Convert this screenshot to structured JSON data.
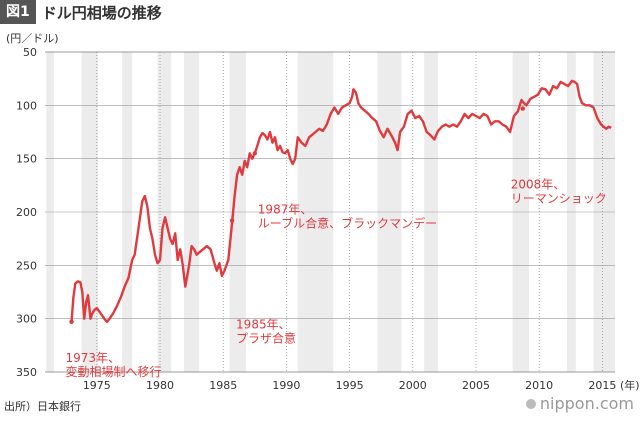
{
  "header": {
    "badge": "図1",
    "title": "ドル円相場の推移"
  },
  "unit_label": "(円／ドル)",
  "source": "出所）日本銀行",
  "brand": "nippon.com",
  "colors": {
    "line": "#e03a3e",
    "band": "#ececec",
    "grid": "#999999",
    "text": "#333333",
    "annotation": "#e03a3e"
  },
  "chart_data": {
    "type": "line",
    "title": "ドル円相場の推移",
    "ylabel": "(円／ドル)",
    "xlabel": "(年)",
    "y_inverted": true,
    "ylim": [
      50,
      350
    ],
    "xlim": [
      1970.9,
      2016.0
    ],
    "yticks": [
      50,
      100,
      150,
      200,
      250,
      300,
      350
    ],
    "xticks": [
      1975,
      1980,
      1985,
      1990,
      1995,
      2000,
      2005,
      2010,
      2015
    ],
    "xtick_labels": [
      "1975",
      "1980",
      "1985",
      "1990",
      "1995",
      "2000",
      "2005",
      "2010",
      "2015"
    ],
    "x_unit_label": "(年)",
    "recession_bands": [
      [
        1971.0,
        1971.6
      ],
      [
        1973.8,
        1975.1
      ],
      [
        1977.0,
        1977.8
      ],
      [
        1979.8,
        1980.9
      ],
      [
        1981.9,
        1983.1
      ],
      [
        1985.5,
        1986.8
      ],
      [
        1990.9,
        1993.7
      ],
      [
        1997.2,
        1999.1
      ],
      [
        2000.9,
        2002.0
      ],
      [
        2007.9,
        2009.2
      ],
      [
        2012.2,
        2012.9
      ],
      [
        2014.3,
        2016.0
      ]
    ],
    "series": [
      {
        "x": [
          1973.0,
          1973.15,
          1973.3,
          1973.5,
          1973.7,
          1973.85,
          1974.0,
          1974.15,
          1974.3,
          1974.5,
          1974.65,
          1974.8,
          1975.0,
          1975.3,
          1975.6,
          1975.8,
          1976.0,
          1976.3,
          1976.6,
          1976.9,
          1977.2,
          1977.5,
          1977.8,
          1978.0,
          1978.3,
          1978.6,
          1978.8,
          1979.0,
          1979.2,
          1979.4,
          1979.6,
          1979.8,
          1980.0,
          1980.2,
          1980.4,
          1980.6,
          1980.8,
          1981.0,
          1981.2,
          1981.4,
          1981.6,
          1981.8,
          1982.0,
          1982.3,
          1982.5,
          1982.7,
          1982.9,
          1983.1,
          1983.4,
          1983.7,
          1984.0,
          1984.3,
          1984.5,
          1984.7,
          1984.9,
          1985.1,
          1985.4,
          1985.7,
          1985.9,
          1986.1,
          1986.3,
          1986.5,
          1986.7,
          1986.9,
          1987.1,
          1987.3,
          1987.5,
          1987.7,
          1987.9,
          1988.1,
          1988.3,
          1988.5,
          1988.7,
          1988.9,
          1989.1,
          1989.3,
          1989.5,
          1989.7,
          1989.9,
          1990.1,
          1990.3,
          1990.5,
          1990.7,
          1990.9,
          1991.2,
          1991.5,
          1991.8,
          1992.0,
          1992.3,
          1992.6,
          1992.9,
          1993.2,
          1993.5,
          1993.8,
          1994.1,
          1994.4,
          1994.7,
          1995.0,
          1995.2,
          1995.3,
          1995.5,
          1995.7,
          1995.9,
          1996.2,
          1996.5,
          1996.8,
          1997.1,
          1997.4,
          1997.7,
          1998.0,
          1998.3,
          1998.6,
          1998.8,
          1999.0,
          1999.3,
          1999.6,
          1999.9,
          2000.2,
          2000.5,
          2000.8,
          2001.1,
          2001.4,
          2001.7,
          2002.0,
          2002.3,
          2002.6,
          2002.9,
          2003.2,
          2003.5,
          2003.8,
          2004.1,
          2004.4,
          2004.7,
          2005.0,
          2005.3,
          2005.6,
          2005.9,
          2006.2,
          2006.5,
          2006.8,
          2007.1,
          2007.4,
          2007.7,
          2008.0,
          2008.3,
          2008.6,
          2008.8,
          2009.0,
          2009.3,
          2009.6,
          2009.9,
          2010.2,
          2010.5,
          2010.8,
          2011.1,
          2011.4,
          2011.7,
          2012.0,
          2012.3,
          2012.6,
          2012.8,
          2013.0,
          2013.2,
          2013.4,
          2013.7,
          2014.0,
          2014.3,
          2014.6,
          2014.9,
          2015.1,
          2015.3,
          2015.5,
          2015.7
        ],
        "y": [
          303,
          280,
          267,
          265,
          266,
          275,
          300,
          285,
          278,
          300,
          295,
          292,
          290,
          295,
          300,
          303,
          300,
          295,
          288,
          280,
          270,
          262,
          245,
          240,
          215,
          190,
          185,
          195,
          215,
          225,
          240,
          248,
          245,
          215,
          205,
          215,
          225,
          230,
          220,
          245,
          235,
          250,
          270,
          250,
          232,
          235,
          240,
          238,
          235,
          232,
          235,
          248,
          255,
          248,
          260,
          255,
          245,
          210,
          185,
          165,
          158,
          165,
          152,
          158,
          145,
          150,
          145,
          138,
          130,
          126,
          128,
          132,
          125,
          135,
          130,
          142,
          138,
          144,
          145,
          142,
          150,
          155,
          150,
          130,
          135,
          138,
          130,
          128,
          125,
          122,
          124,
          118,
          108,
          102,
          108,
          102,
          100,
          98,
          92,
          85,
          88,
          98,
          102,
          105,
          108,
          112,
          115,
          124,
          130,
          122,
          128,
          135,
          142,
          125,
          120,
          108,
          105,
          112,
          110,
          115,
          125,
          128,
          132,
          124,
          120,
          118,
          120,
          118,
          120,
          115,
          108,
          112,
          108,
          110,
          112,
          108,
          110,
          118,
          115,
          115,
          118,
          120,
          125,
          110,
          106,
          95,
          98,
          100,
          94,
          92,
          90,
          84,
          85,
          90,
          82,
          84,
          78,
          80,
          82,
          77,
          78,
          80,
          92,
          98,
          100,
          100,
          102,
          112,
          118,
          120,
          122,
          120,
          121
        ]
      }
    ],
    "annotations": [
      {
        "x": 1973.0,
        "y": 303,
        "line1": "1973年、",
        "line2": "変動相場制へ移行"
      },
      {
        "x": 1985.7,
        "y": 208,
        "line1": "1985年、",
        "line2": "プラザ合意"
      },
      {
        "x": 1987.5,
        "y": 145,
        "line1": "1987年、",
        "line2": "ルーブル合意、ブラックマンデー"
      },
      {
        "x": 2008.7,
        "y": 103,
        "line1": "2008年、",
        "line2": "リーマンショック"
      }
    ]
  }
}
